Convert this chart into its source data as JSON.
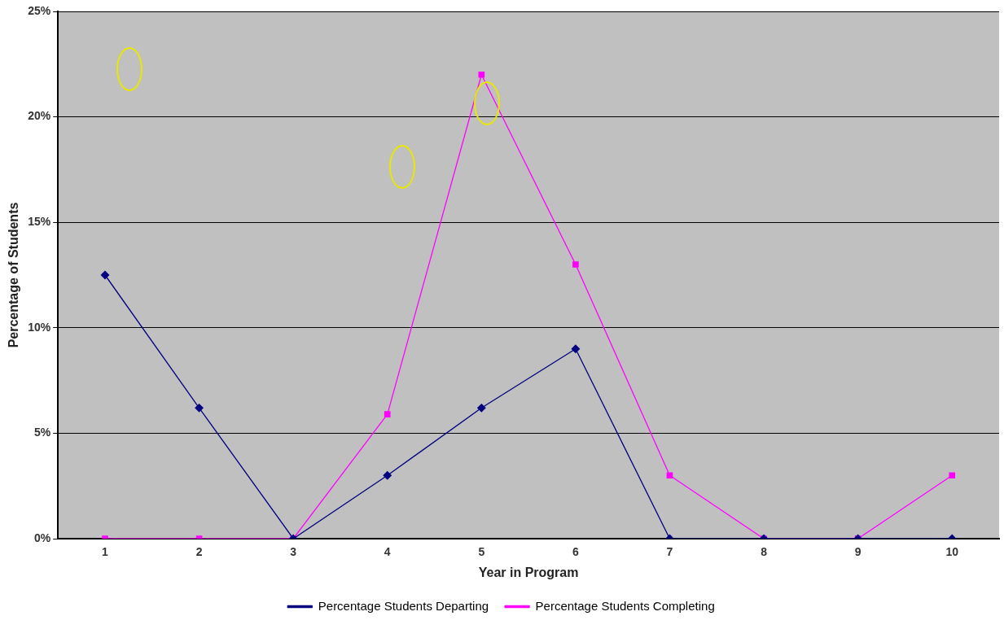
{
  "chart_data": {
    "type": "line",
    "xlabel": "Year in Program",
    "ylabel": "Percentage of Students",
    "categories": [
      "1",
      "2",
      "3",
      "4",
      "5",
      "6",
      "7",
      "8",
      "9",
      "10"
    ],
    "series": [
      {
        "name": "Percentage Students Departing",
        "color": "#000080",
        "marker": "diamond",
        "values": [
          12.5,
          6.2,
          0,
          3.0,
          6.2,
          9.0,
          0,
          0,
          0,
          0
        ]
      },
      {
        "name": "Percentage Students Completing",
        "color": "#ff00ff",
        "marker": "square",
        "values": [
          0,
          0,
          0,
          5.9,
          22.0,
          13.0,
          3.0,
          0,
          0,
          3.0
        ]
      }
    ],
    "ylim": [
      0,
      25
    ],
    "yticks": [
      {
        "value": 0,
        "label": "0%"
      },
      {
        "value": 5,
        "label": "5%"
      },
      {
        "value": 10,
        "label": "10%"
      },
      {
        "value": 15,
        "label": "15%"
      },
      {
        "value": 20,
        "label": "20%"
      },
      {
        "value": 25,
        "label": "25%"
      }
    ],
    "grid": "y",
    "legend": "bottom",
    "line_style": "solid"
  }
}
